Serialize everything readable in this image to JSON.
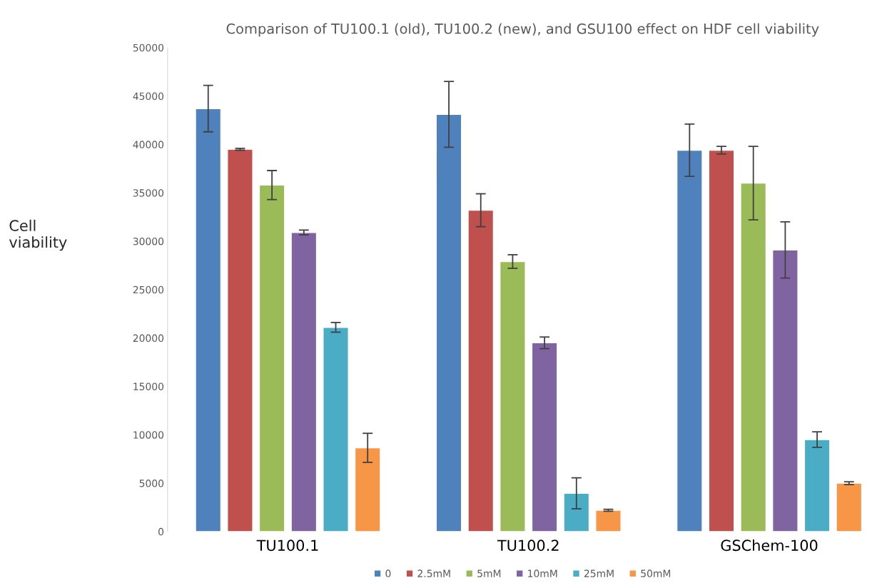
{
  "chart_data": {
    "type": "bar",
    "title": "Comparison of TU100.1 (old), TU100.2 (new), and GSU100 effect on HDF cell viability",
    "ylabel": "Cell viability",
    "categories": [
      "TU100.1",
      "TU100.2",
      "GSChem-100"
    ],
    "series": [
      {
        "name": "0",
        "color": "#4f81bd",
        "values": [
          43700,
          43100,
          39400
        ],
        "errors": [
          2400,
          3400,
          2700
        ]
      },
      {
        "name": "2.5mM",
        "color": "#c0504d",
        "values": [
          39500,
          33200,
          39400
        ],
        "errors": [
          100,
          1700,
          400
        ]
      },
      {
        "name": "5mM",
        "color": "#9bbb59",
        "values": [
          35800,
          27900,
          36000
        ],
        "errors": [
          1500,
          700,
          3800
        ]
      },
      {
        "name": "10mM",
        "color": "#8064a2",
        "values": [
          30900,
          19500,
          29100
        ],
        "errors": [
          250,
          600,
          2900
        ]
      },
      {
        "name": "25mM",
        "color": "#4bacc6",
        "values": [
          21100,
          3950,
          9500
        ],
        "errors": [
          500,
          1600,
          800
        ]
      },
      {
        "name": "50mM",
        "color": "#f79646",
        "values": [
          8650,
          2200,
          5000
        ],
        "errors": [
          1500,
          100,
          150
        ]
      }
    ],
    "ylim": [
      0,
      50000
    ],
    "yticks": [
      0,
      5000,
      10000,
      15000,
      20000,
      25000,
      30000,
      35000,
      40000,
      45000,
      50000
    ],
    "grid": false,
    "legend": "bottom"
  }
}
